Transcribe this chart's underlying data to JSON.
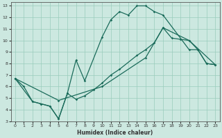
{
  "xlabel": "Humidex (Indice chaleur)",
  "bg_color": "#cce8e0",
  "grid_color": "#99ccbb",
  "line_color": "#1a6b5a",
  "xlim": [
    -0.5,
    23.5
  ],
  "ylim": [
    3,
    13.3
  ],
  "xticks": [
    0,
    1,
    2,
    3,
    4,
    5,
    6,
    7,
    8,
    9,
    10,
    11,
    12,
    13,
    14,
    15,
    16,
    17,
    18,
    19,
    20,
    21,
    22,
    23
  ],
  "yticks": [
    3,
    4,
    5,
    6,
    7,
    8,
    9,
    10,
    11,
    12,
    13
  ],
  "series": [
    {
      "x": [
        0,
        1,
        2,
        3,
        4,
        5,
        6,
        7,
        8,
        10,
        11,
        12,
        13,
        14,
        15,
        16,
        17,
        20,
        21,
        22,
        23
      ],
      "y": [
        6.7,
        6.0,
        4.7,
        4.5,
        4.3,
        3.2,
        5.4,
        8.3,
        6.5,
        10.3,
        11.8,
        12.5,
        12.2,
        13.0,
        13.0,
        12.5,
        12.2,
        9.2,
        9.2,
        8.0,
        7.9
      ]
    },
    {
      "x": [
        0,
        2,
        3,
        4,
        5,
        6,
        7,
        8,
        9,
        10,
        11,
        12,
        14,
        15,
        16,
        17,
        18,
        19,
        20,
        21,
        22,
        23
      ],
      "y": [
        6.7,
        4.7,
        4.5,
        4.3,
        3.2,
        5.4,
        4.9,
        5.2,
        5.7,
        6.3,
        7.0,
        7.5,
        8.7,
        9.2,
        9.8,
        11.1,
        10.2,
        10.1,
        10.0,
        9.2,
        8.0,
        7.9
      ]
    },
    {
      "x": [
        0,
        5,
        10,
        15,
        17,
        20,
        23
      ],
      "y": [
        6.7,
        4.8,
        6.0,
        8.5,
        11.1,
        10.0,
        7.9
      ]
    }
  ]
}
